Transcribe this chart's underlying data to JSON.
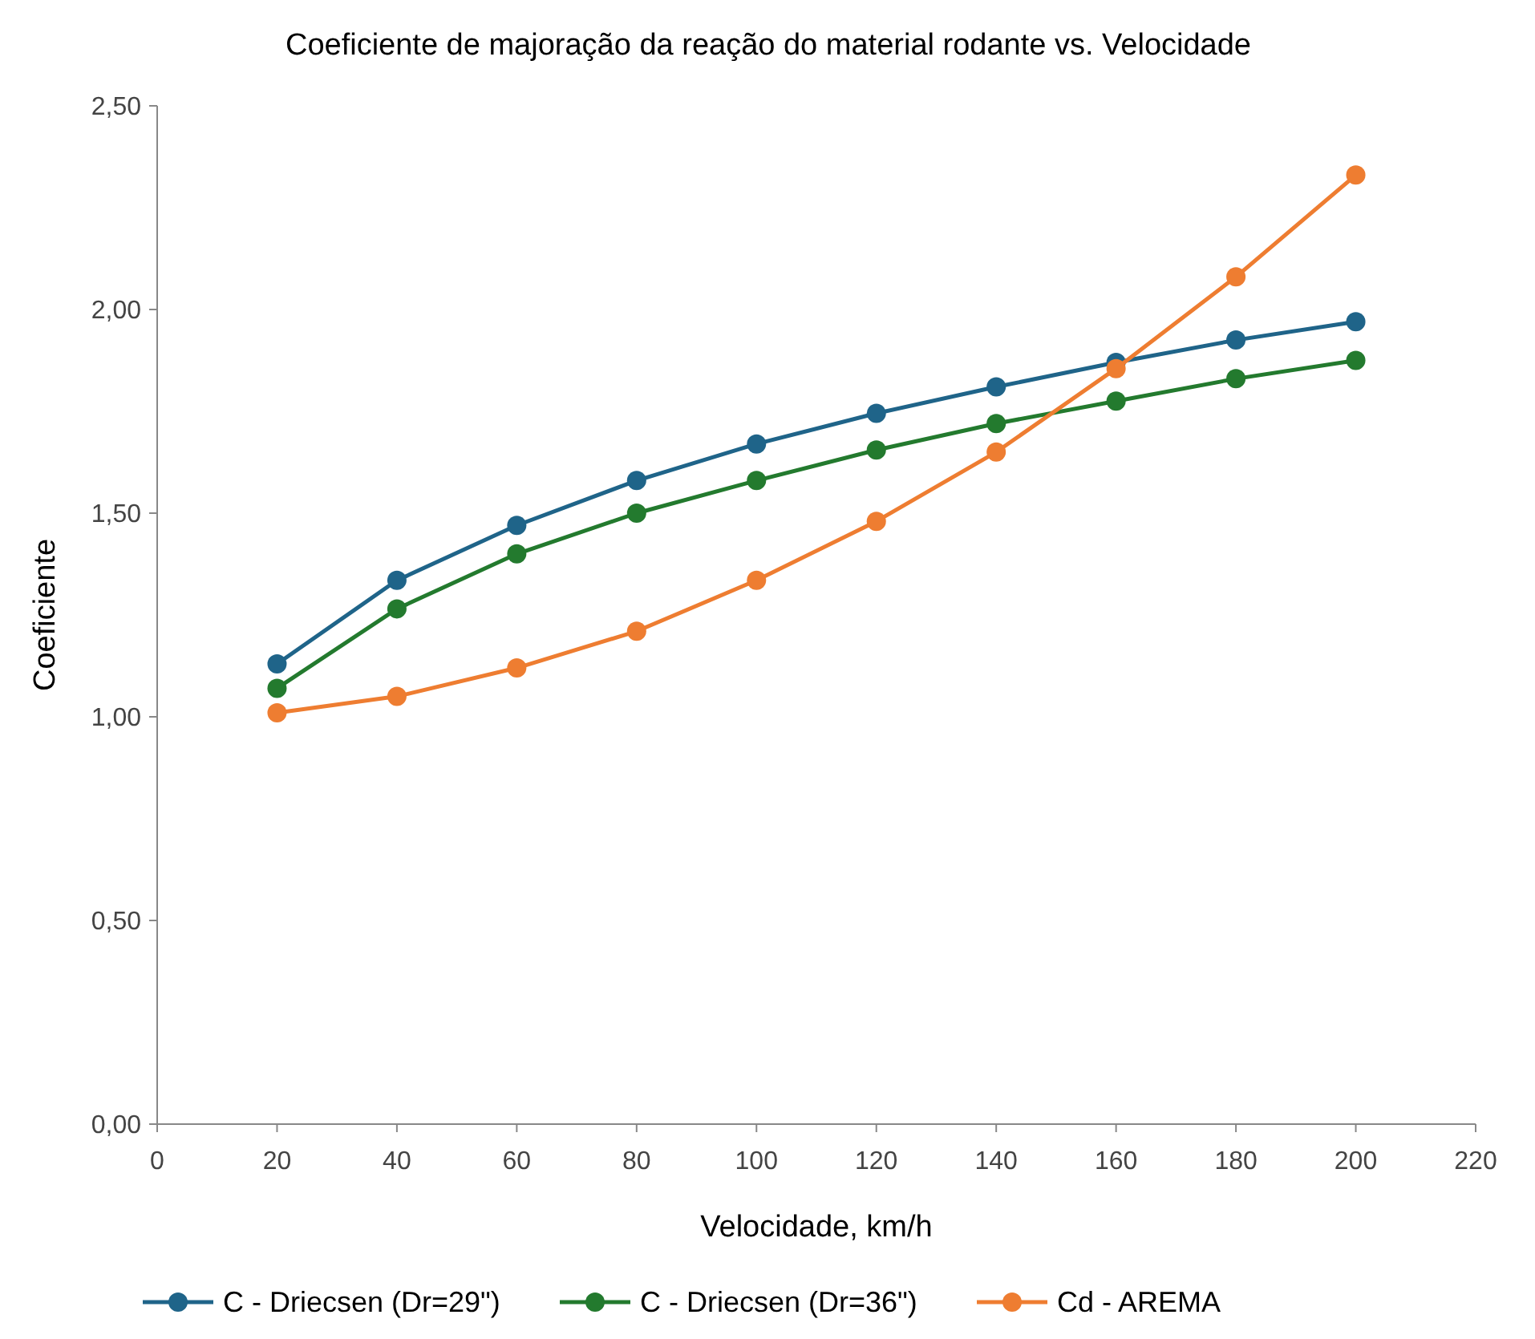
{
  "chart_data": {
    "type": "line",
    "title": "Coeficiente de majoração da reação do material rodante vs. Velocidade",
    "xlabel": "Velocidade, km/h",
    "ylabel": "Coeficiente",
    "x": [
      20,
      40,
      60,
      80,
      100,
      120,
      140,
      160,
      180,
      200
    ],
    "series": [
      {
        "name": "C - Driecsen (Dr=29\")",
        "color": "#1f6489",
        "values": [
          1.13,
          1.335,
          1.47,
          1.58,
          1.67,
          1.745,
          1.81,
          1.87,
          1.925,
          1.97
        ]
      },
      {
        "name": "C - Driecsen (Dr=36\")",
        "color": "#237a2e",
        "values": [
          1.07,
          1.265,
          1.4,
          1.5,
          1.58,
          1.655,
          1.72,
          1.775,
          1.83,
          1.875
        ]
      },
      {
        "name": "Cd - AREMA",
        "color": "#ee7d31",
        "values": [
          1.01,
          1.05,
          1.12,
          1.21,
          1.335,
          1.48,
          1.65,
          1.855,
          2.08,
          2.33
        ]
      }
    ],
    "xlim": [
      0,
      220
    ],
    "xticks": [
      0,
      20,
      40,
      60,
      80,
      100,
      120,
      140,
      160,
      180,
      200,
      220
    ],
    "ylim": [
      0,
      2.5
    ],
    "yticks": [
      {
        "value": 0,
        "label": "0,00"
      },
      {
        "value": 0.5,
        "label": "0,50"
      },
      {
        "value": 1,
        "label": "1,00"
      },
      {
        "value": 1.5,
        "label": "1,50"
      },
      {
        "value": 2,
        "label": "2,00"
      },
      {
        "value": 2.5,
        "label": "2,50"
      }
    ],
    "grid": false,
    "legend": "bottom",
    "marker": "circle",
    "line_style": "solid"
  }
}
